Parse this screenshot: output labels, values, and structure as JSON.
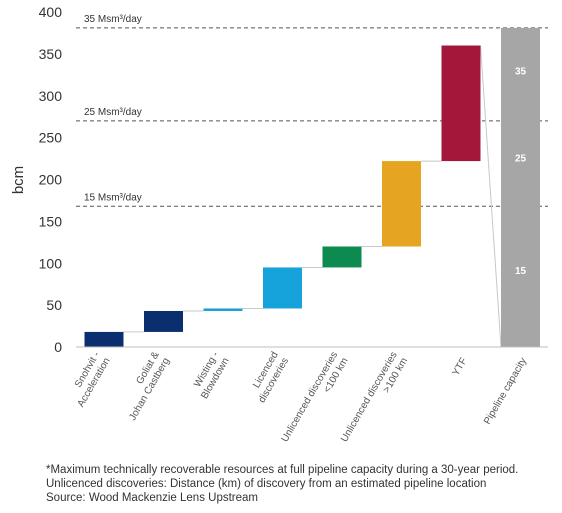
{
  "chart_data": {
    "type": "bar",
    "subtype": "waterfall",
    "ylabel": "bcm",
    "ylim": [
      0,
      400
    ],
    "yticks": [
      0,
      50,
      100,
      150,
      200,
      250,
      300,
      350,
      400
    ],
    "grid": false,
    "legend": "none",
    "categories": [
      [
        "Snohvit -",
        "Acceleration"
      ],
      [
        "Goliat &",
        "Johan Castberg"
      ],
      [
        "Wisting -",
        "Blowdown"
      ],
      [
        "Licenced",
        "discoveries"
      ],
      [
        "Unlicenced discoveries",
        "<100 km"
      ],
      [
        "Unlicenced discoveries",
        ">100 km"
      ],
      [
        "YTF"
      ],
      [
        "Pipeline capacity"
      ]
    ],
    "bars": [
      {
        "base": 0,
        "top": 18,
        "color": "#0b2f6e"
      },
      {
        "base": 18,
        "top": 43,
        "color": "#0b2f6e"
      },
      {
        "base": 43,
        "top": 46,
        "color": "#1a9fd6"
      },
      {
        "base": 46,
        "top": 95,
        "color": "#16a3dc"
      },
      {
        "base": 95,
        "top": 120,
        "color": "#0d8a4f"
      },
      {
        "base": 120,
        "top": 222,
        "color": "#e6a520"
      },
      {
        "base": 222,
        "top": 360,
        "color": "#a3183a"
      },
      {
        "base": 0,
        "top": 381,
        "color": "#a6a6a6"
      }
    ],
    "reference_lines": [
      {
        "value": 168,
        "label": "15 Msm³/day"
      },
      {
        "value": 270,
        "label": "25 Msm³/day"
      },
      {
        "value": 381,
        "label": "35 Msm³/day"
      }
    ],
    "capacity_labels": [
      {
        "value": 92,
        "label": "15"
      },
      {
        "value": 226,
        "label": "25"
      },
      {
        "value": 330,
        "label": "35"
      }
    ]
  },
  "footnotes": [
    "*Maximum technically recoverable resources at full pipeline capacity during a 30-year period.",
    "Unlicenced discoveries: Distance (km) of discovery from an estimated pipeline location",
    "Source: Wood Mackenzie Lens Upstream"
  ]
}
